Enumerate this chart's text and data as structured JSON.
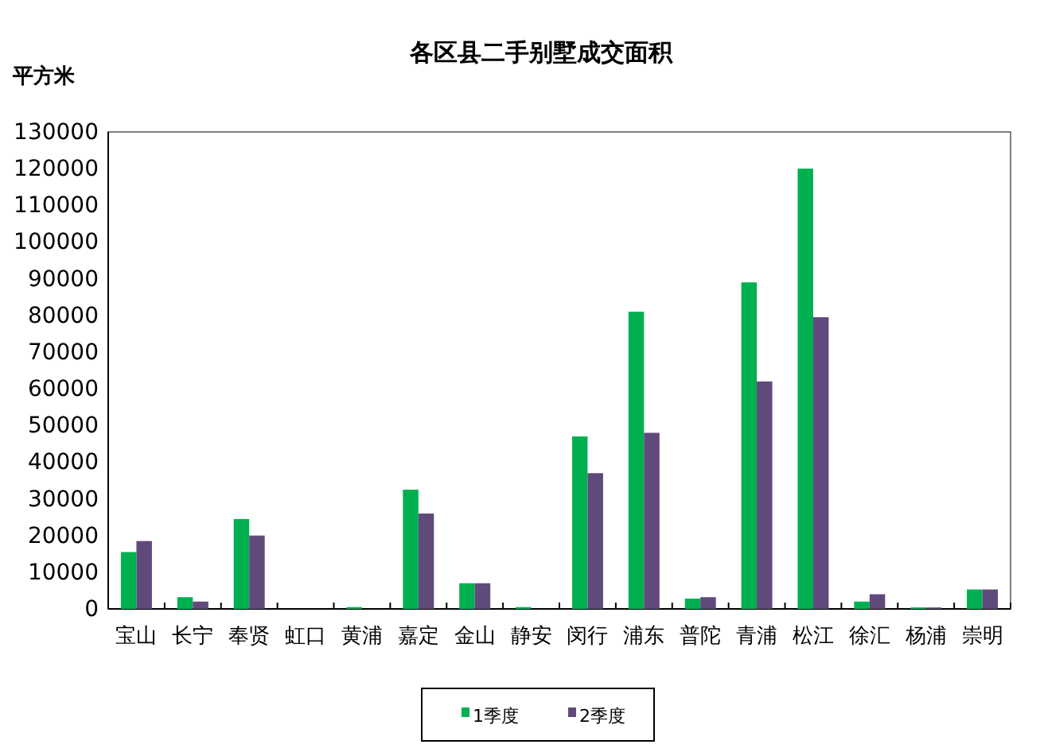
{
  "chart_data": {
    "type": "bar",
    "title": "各区县二手别墅成交面积",
    "ylabel": "平方米",
    "categories": [
      "宝山",
      "长宁",
      "奉贤",
      "虹口",
      "黄浦",
      "嘉定",
      "金山",
      "静安",
      "闵行",
      "浦东",
      "普陀",
      "青浦",
      "松江",
      "徐汇",
      "杨浦",
      "崇明"
    ],
    "series": [
      {
        "name": "1季度",
        "color": "#00b050",
        "values": [
          15500,
          3200,
          24500,
          0,
          500,
          32500,
          7000,
          500,
          47000,
          81000,
          2800,
          89000,
          120000,
          2000,
          400,
          5300
        ]
      },
      {
        "name": "2季度",
        "color": "#604a7b",
        "values": [
          18500,
          2000,
          20000,
          0,
          0,
          26000,
          7000,
          0,
          37000,
          48000,
          3200,
          62000,
          79500,
          4000,
          400,
          5300
        ]
      }
    ],
    "ylim": [
      0,
      130000
    ],
    "yticks": [
      0,
      10000,
      20000,
      30000,
      40000,
      50000,
      60000,
      70000,
      80000,
      90000,
      100000,
      110000,
      120000,
      130000
    ],
    "grid": false,
    "legend": "bottom"
  }
}
